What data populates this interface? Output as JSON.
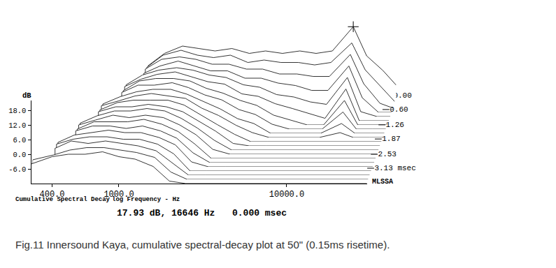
{
  "chart_data": {
    "type": "waterfall",
    "title": "Fig.11 Innersound Kaya, cumulative spectral-decay plot at 50\" (0.15ms risetime).",
    "subtitle": "Cumulative Spectral Decay",
    "x_label": "log Frequency - Hz",
    "y_label": "dB",
    "brand": "MLSSA",
    "readout": "17.93 dB, 16646 Hz",
    "readout_time": "0.000 msec",
    "cursor": {
      "x": 16646,
      "y": 17.93,
      "t": 0
    },
    "log": "x",
    "color": "#000000",
    "x": [
      300,
      400,
      500,
      630,
      800,
      1000,
      1250,
      1600,
      2000,
      2500,
      3150,
      4000,
      5000,
      6300,
      8000,
      10000,
      12500,
      16646,
      20000,
      25000,
      30000
    ],
    "xlim": [
      300,
      30000
    ],
    "xticks": [
      {
        "value": 400,
        "label": "400.0"
      },
      {
        "value": 1000,
        "label": "1000.0"
      },
      {
        "value": 10000,
        "label": "10000.0"
      }
    ],
    "ylim": [
      -12,
      22
    ],
    "yticks": [
      {
        "value": 18,
        "label": "18.0"
      },
      {
        "value": 12,
        "label": "12.0"
      },
      {
        "value": 6,
        "label": "6.0"
      },
      {
        "value": 0,
        "label": "0.0"
      },
      {
        "value": -6,
        "label": "-6.0"
      }
    ],
    "zlim": [
      0,
      3.13
    ],
    "zticks": [
      {
        "value": 0,
        "label": "0.00"
      },
      {
        "value": 0.6,
        "label": "0.60"
      },
      {
        "value": 1.26,
        "label": "1.26"
      },
      {
        "value": 1.87,
        "label": "1.87"
      },
      {
        "value": 2.53,
        "label": "2.53"
      },
      {
        "value": 3.13,
        "label": "3.13 msec"
      }
    ],
    "series": [
      {
        "t": 0,
        "values": [
          null,
          null,
          null,
          null,
          null,
          2,
          7,
          10,
          9,
          8,
          9,
          7,
          8,
          7,
          8,
          7,
          8,
          17.93,
          6,
          0,
          -6
        ]
      },
      {
        "t": 0.157,
        "values": [
          null,
          null,
          null,
          null,
          null,
          3,
          8,
          10,
          8,
          7,
          8,
          5,
          6,
          5,
          5,
          4,
          5,
          13,
          2,
          -5,
          -11
        ]
      },
      {
        "t": 0.313,
        "values": [
          null,
          null,
          null,
          null,
          null,
          4,
          8,
          9,
          8,
          6,
          6,
          4,
          4,
          2,
          2,
          1,
          1,
          10,
          -2,
          -10,
          -12
        ]
      },
      {
        "t": 0.47,
        "values": [
          null,
          null,
          null,
          null,
          null,
          4,
          7,
          9,
          7,
          5,
          5,
          2,
          2,
          0,
          -1,
          -3,
          -3,
          7,
          -6,
          -12,
          -12
        ]
      },
      {
        "t": 0.626,
        "values": [
          null,
          null,
          null,
          null,
          1,
          5,
          7,
          8,
          7,
          5,
          4,
          1,
          0,
          -3,
          -4,
          -6,
          -7,
          4,
          -10,
          -12,
          -12
        ]
      },
      {
        "t": 0.783,
        "values": [
          null,
          null,
          null,
          null,
          2,
          5,
          7,
          8,
          6,
          4,
          3,
          -1,
          -2,
          -5,
          -7,
          -9,
          -11,
          1,
          -12,
          -12,
          -12
        ]
      },
      {
        "t": 0.939,
        "values": [
          null,
          null,
          null,
          null,
          2,
          6,
          7,
          7,
          6,
          3,
          1,
          -2,
          -4,
          -8,
          -10,
          -12,
          -12,
          -2,
          -12,
          -12,
          -12
        ]
      },
      {
        "t": 1.096,
        "values": [
          null,
          null,
          null,
          null,
          3,
          6,
          6,
          7,
          5,
          2,
          0,
          -4,
          -6,
          -10,
          -12,
          -12,
          -12,
          -5,
          -12,
          -12,
          -12
        ]
      },
      {
        "t": 1.252,
        "values": [
          null,
          null,
          null,
          0,
          3,
          5,
          6,
          6,
          4,
          1,
          -2,
          -6,
          -8,
          -12,
          -12,
          -12,
          -12,
          -8,
          -12,
          -12,
          -12
        ]
      },
      {
        "t": 1.409,
        "values": [
          null,
          null,
          null,
          1,
          3,
          5,
          6,
          5,
          4,
          0,
          -3,
          -7,
          -10,
          -12,
          -12,
          -12,
          -12,
          -10,
          -12,
          -12,
          -12
        ]
      },
      {
        "t": 1.565,
        "values": [
          null,
          null,
          null,
          1,
          4,
          5,
          5,
          5,
          3,
          -1,
          -5,
          -9,
          -12,
          -12,
          -12,
          -12,
          -12,
          -12,
          -12,
          -12,
          -12
        ]
      },
      {
        "t": 1.722,
        "values": [
          null,
          null,
          null,
          2,
          4,
          4,
          5,
          4,
          2,
          -2,
          -6,
          -11,
          -12,
          -12,
          -12,
          -12,
          -12,
          -12,
          -12,
          -12,
          -12
        ]
      },
      {
        "t": 1.878,
        "values": [
          null,
          null,
          -1,
          2,
          4,
          4,
          5,
          4,
          1,
          -3,
          -8,
          -12,
          -12,
          -12,
          -12,
          -12,
          -12,
          -12,
          -12,
          -12,
          -12
        ]
      },
      {
        "t": 2.035,
        "values": [
          null,
          null,
          0,
          2,
          4,
          3,
          4,
          3,
          0,
          -4,
          -10,
          -12,
          -12,
          -12,
          -12,
          -12,
          -12,
          -12,
          -12,
          -12,
          -12
        ]
      },
      {
        "t": 2.191,
        "values": [
          null,
          null,
          0,
          3,
          3,
          3,
          4,
          2,
          -1,
          -6,
          -12,
          -12,
          -12,
          -12,
          -12,
          -12,
          -12,
          -12,
          -12,
          -12,
          -12
        ]
      },
      {
        "t": 2.348,
        "values": [
          null,
          null,
          1,
          3,
          3,
          2,
          3,
          1,
          -2,
          -8,
          -12,
          -12,
          -12,
          -12,
          -12,
          -12,
          -12,
          -12,
          -12,
          -12,
          -12
        ]
      },
      {
        "t": 2.504,
        "values": [
          null,
          -2,
          1,
          2,
          3,
          2,
          2,
          0,
          -3,
          -10,
          -12,
          -12,
          -12,
          -12,
          -12,
          -12,
          -12,
          -12,
          -12,
          -12,
          -12
        ]
      },
      {
        "t": 2.661,
        "values": [
          null,
          -1,
          1,
          2,
          2,
          1,
          1,
          -1,
          -5,
          -12,
          -12,
          -12,
          -12,
          -12,
          -12,
          -12,
          -12,
          -12,
          -12,
          -12,
          -12
        ]
      },
      {
        "t": 2.817,
        "values": [
          null,
          -1,
          2,
          1,
          2,
          1,
          0,
          -2,
          -7,
          -12,
          -12,
          -12,
          -12,
          -12,
          -12,
          -12,
          -12,
          -12,
          -12,
          -12,
          -12
        ]
      },
      {
        "t": 2.974,
        "values": [
          -4,
          -2,
          0,
          1,
          1,
          0,
          -1,
          -3,
          -9,
          -12,
          -12,
          -12,
          -12,
          -12,
          -12,
          -12,
          -12,
          -12,
          -12,
          -12,
          -12
        ]
      },
      {
        "t": 3.13,
        "values": [
          -4,
          -1,
          0,
          0,
          1,
          -1,
          -2,
          -5,
          -11,
          -12,
          -12,
          -12,
          -12,
          -12,
          -12,
          -12,
          -12,
          -12,
          -12,
          -12,
          -12
        ]
      }
    ]
  }
}
